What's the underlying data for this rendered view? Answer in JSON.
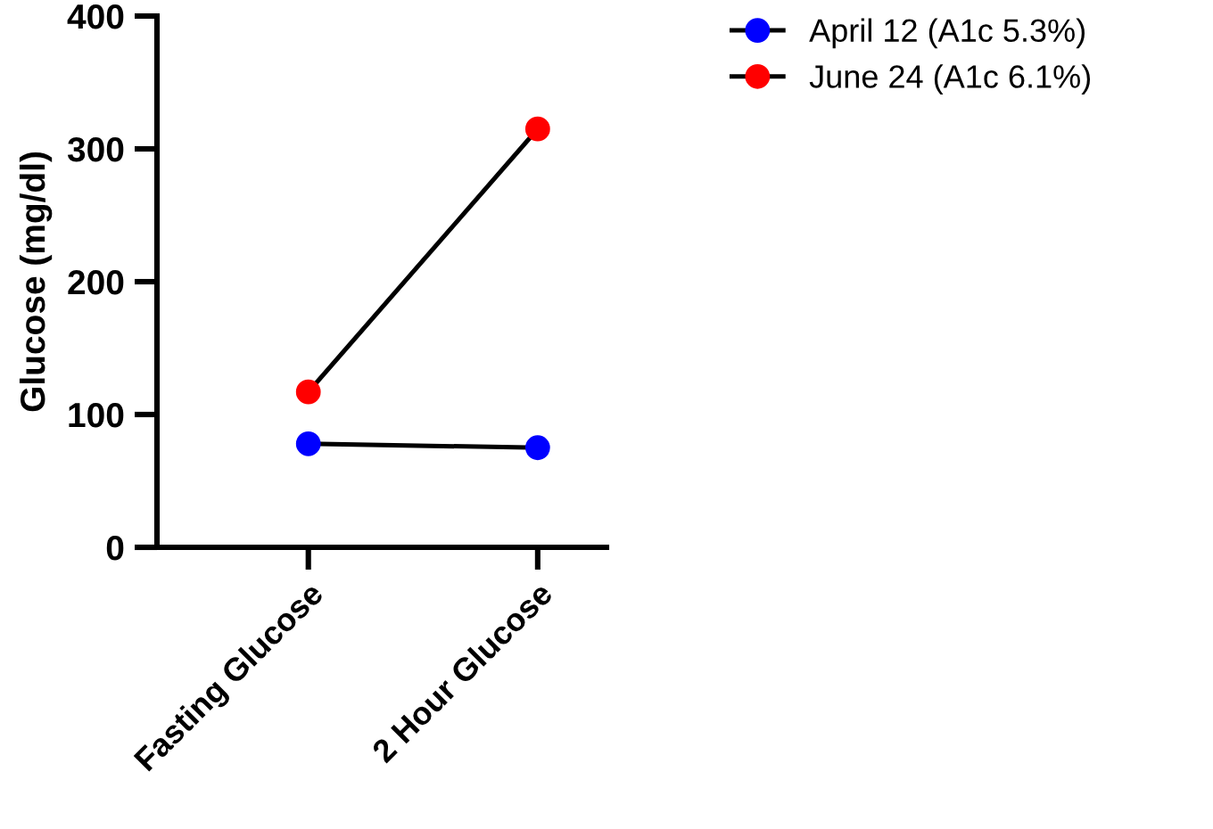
{
  "chart_data": {
    "type": "line",
    "ylabel": "Glucose (mg/dl)",
    "categories": [
      "Fasting Glucose",
      "2 Hour Glucose"
    ],
    "series": [
      {
        "name": "April 12 (A1c 5.3%)",
        "color": "#0000ff",
        "values": [
          78,
          75
        ]
      },
      {
        "name": "June 24 (A1c 6.1%)",
        "color": "#ff0000",
        "values": [
          117,
          315
        ]
      }
    ],
    "ylim": [
      0,
      400
    ],
    "yticks": [
      0,
      100,
      200,
      300,
      400
    ],
    "legend": "top right",
    "marker": "circle",
    "line_style": "solid"
  }
}
